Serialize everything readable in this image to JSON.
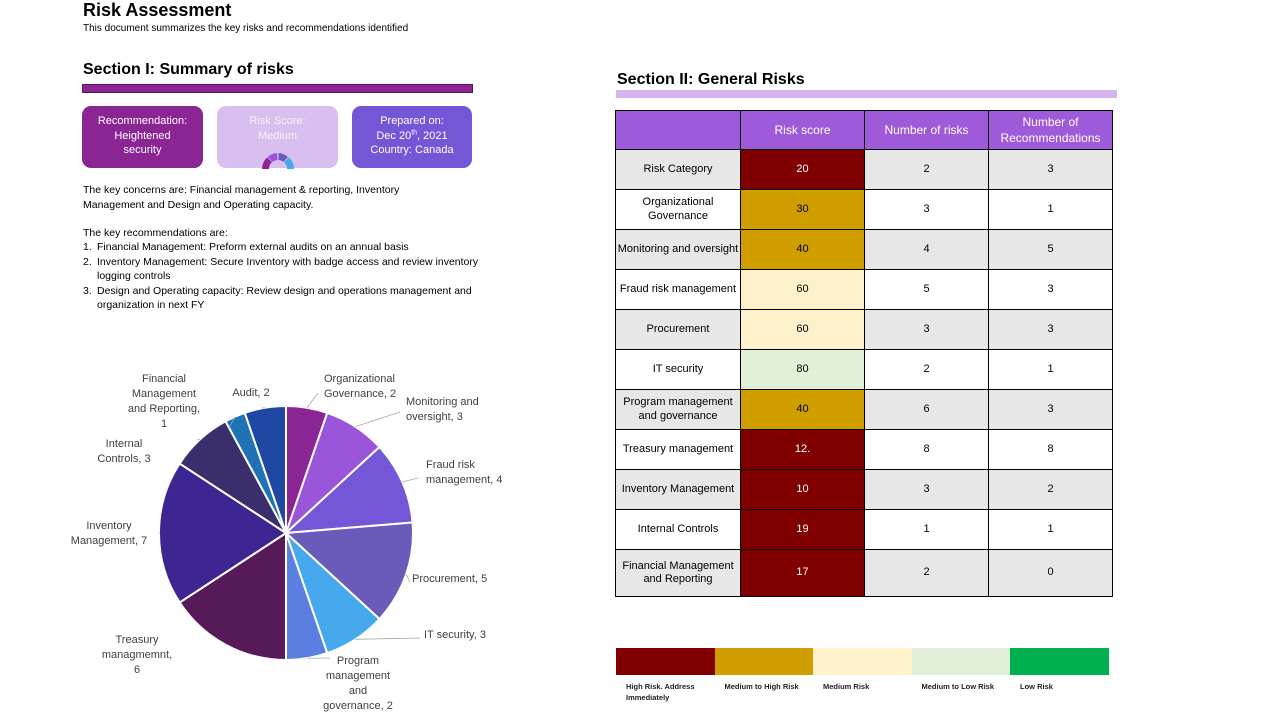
{
  "header": {
    "title": "Risk Assessment",
    "subtitle": "This document summarizes the key risks and recommendations identified"
  },
  "section1": {
    "title": "Section I: Summary of risks",
    "cards": {
      "recommendation_line1": "Recommendation:",
      "recommendation_line2": "Heightened",
      "recommendation_line3": "security",
      "risk_line1": "Risk Score:",
      "risk_line2": "Medium",
      "prepared_line1": "Prepared on:",
      "prepared_date_prefix": "Dec 20",
      "prepared_date_sup": "th",
      "prepared_date_suffix": ", 2021",
      "prepared_line3": "Country: Canada"
    },
    "concerns": "The key concerns are: Financial management & reporting,  Inventory Management and Design and Operating capacity.",
    "recommendations_intro": "The key recommendations are:",
    "recommendations": [
      {
        "num": "1.",
        "text": "Financial Management: Preform external audits on an annual basis"
      },
      {
        "num": "2.",
        "text": "Inventory Management: Secure Inventory with badge access and review inventory logging controls"
      },
      {
        "num": "3.",
        "text": "Design and Operating capacity: Review design and operations management and organization in next FY"
      }
    ]
  },
  "chart_data": {
    "type": "pie",
    "categories": [
      "Organizational Governance",
      "Monitoring and oversight",
      "Fraud risk management",
      "Procurement",
      "IT security",
      "Program management and governance",
      "Treasury managmemnt",
      "Inventory Management",
      "Internal Controls",
      "Financial Management and Reporting",
      "Audit"
    ],
    "values": [
      2,
      3,
      4,
      5,
      3,
      2,
      6,
      7,
      3,
      1,
      2
    ],
    "labels": [
      [
        "Organizational",
        "Governance, 2"
      ],
      [
        "Monitoring and",
        "oversight, 3"
      ],
      [
        "Fraud risk",
        "management, 4"
      ],
      [
        "Procurement, 5"
      ],
      [
        "IT security, 3"
      ],
      [
        "Program",
        "management",
        "and",
        "governance, 2"
      ],
      [
        "Treasury",
        "managmemnt,",
        "6"
      ],
      [
        "Inventory",
        "Management, 7"
      ],
      [
        "Internal",
        "Controls, 3"
      ],
      [
        "Financial",
        "Management",
        "and Reporting,",
        "1"
      ],
      [
        "Audit, 2"
      ]
    ],
    "colors": [
      "#8b2593",
      "#9a55db",
      "#7357d6",
      "#6a5bba",
      "#46a8ed",
      "#5b7fe0",
      "#571a58",
      "#3d2592",
      "#3b2e6d",
      "#1f73b4",
      "#1f48a3"
    ]
  },
  "section2": {
    "title": "Section II: General Risks",
    "table": {
      "headers": [
        "",
        "Risk score",
        "Number of risks",
        "Number of Recommendations"
      ],
      "rows": [
        {
          "category": "Risk Category",
          "score": "20",
          "risks": "2",
          "recs": "3",
          "color": "#800000"
        },
        {
          "category": "Organizational Governance",
          "score": "30",
          "risks": "3",
          "recs": "1",
          "color": "#d19e00"
        },
        {
          "category": "Monitoring and oversight",
          "score": "40",
          "risks": "4",
          "recs": "5",
          "color": "#d19e00"
        },
        {
          "category": "Fraud risk management",
          "score": "60",
          "risks": "5",
          "recs": "3",
          "color": "#fef1cb"
        },
        {
          "category": "Procurement",
          "score": "60",
          "risks": "3",
          "recs": "3",
          "color": "#fef1cb"
        },
        {
          "category": "IT security",
          "score": "80",
          "risks": "2",
          "recs": "1",
          "color": "#e2efd9"
        },
        {
          "category": "Program management and governance",
          "score": "40",
          "risks": "6",
          "recs": "3",
          "color": "#d19e00"
        },
        {
          "category": "Treasury management",
          "score": "12.",
          "risks": "8",
          "recs": "8",
          "color": "#800000"
        },
        {
          "category": "Inventory Management",
          "score": "10",
          "risks": "3",
          "recs": "2",
          "color": "#800000"
        },
        {
          "category": "Internal Controls",
          "score": "19",
          "risks": "1",
          "recs": "1",
          "color": "#800000"
        },
        {
          "category": "Financial Management and Reporting",
          "score": "17",
          "risks": "2",
          "recs": "0",
          "color": "#800000"
        }
      ]
    },
    "legend": [
      {
        "label": "High Risk. Address Immediately",
        "color": "#800000"
      },
      {
        "label": "Medium to High Risk",
        "color": "#d19e00"
      },
      {
        "label": "Medium Risk",
        "color": "#fef1cb"
      },
      {
        "label": "Medium to Low Risk",
        "color": "#e2efd9"
      },
      {
        "label": "Low Risk",
        "color": "#00b050"
      }
    ]
  }
}
